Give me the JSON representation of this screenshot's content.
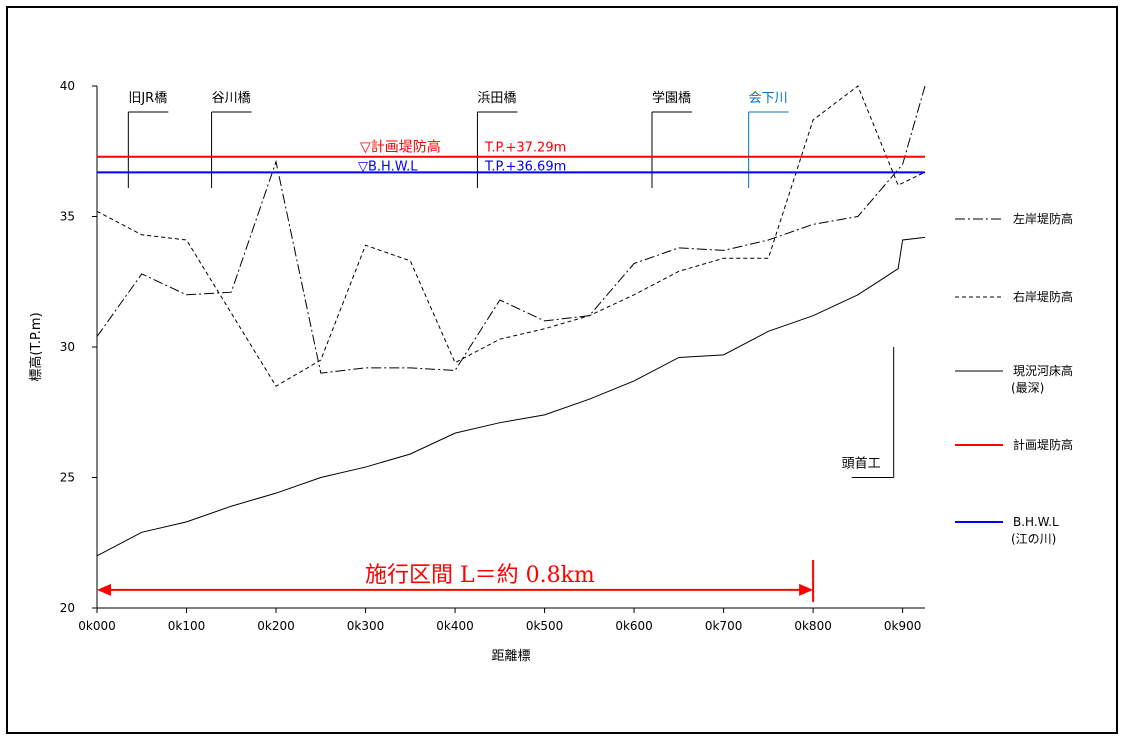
{
  "chart_data": {
    "type": "line",
    "xlabel": "距離標",
    "ylabel": "標高(T.P.m)",
    "ylim": [
      20,
      40
    ],
    "xlim": [
      0,
      925
    ],
    "x_ticks": [
      0,
      100,
      200,
      300,
      400,
      500,
      600,
      700,
      800,
      900
    ],
    "x_tick_labels": [
      "0k000",
      "0k100",
      "0k200",
      "0k300",
      "0k400",
      "0k500",
      "0k600",
      "0k700",
      "0k800",
      "0k900"
    ],
    "y_ticks": [
      20,
      25,
      30,
      35,
      40
    ],
    "y_tick_labels": [
      "20",
      "25",
      "30",
      "35",
      "40"
    ],
    "grid": false,
    "legend_position": "right",
    "series": [
      {
        "name": "左岸堤防高",
        "style": "dashdot",
        "color": "#000000",
        "x": [
          0,
          50,
          100,
          150,
          200,
          250,
          300,
          350,
          400,
          450,
          500,
          550,
          600,
          650,
          700,
          750,
          800,
          850,
          900,
          925
        ],
        "y": [
          30.4,
          32.8,
          32.0,
          32.1,
          37.1,
          29.0,
          29.2,
          29.2,
          29.1,
          31.8,
          31.0,
          31.2,
          33.2,
          33.8,
          33.7,
          34.1,
          34.7,
          35.0,
          37.0,
          40.0
        ]
      },
      {
        "name": "右岸堤防高",
        "style": "dashed",
        "color": "#000000",
        "x": [
          0,
          50,
          100,
          150,
          200,
          250,
          300,
          350,
          400,
          450,
          500,
          550,
          600,
          650,
          700,
          750,
          800,
          850,
          895,
          925
        ],
        "y": [
          35.2,
          34.3,
          34.1,
          31.3,
          28.5,
          29.5,
          33.9,
          33.3,
          29.4,
          30.3,
          30.7,
          31.2,
          32.0,
          32.9,
          33.4,
          33.4,
          38.7,
          40.0,
          36.2,
          36.7
        ]
      },
      {
        "name": "現況河床高\n(最深)",
        "style": "solid",
        "color": "#000000",
        "x": [
          0,
          50,
          100,
          150,
          200,
          250,
          300,
          350,
          400,
          450,
          500,
          550,
          600,
          650,
          700,
          750,
          800,
          850,
          895,
          900,
          925
        ],
        "y": [
          22.0,
          22.9,
          23.3,
          23.9,
          24.4,
          25.0,
          25.4,
          25.9,
          26.7,
          27.1,
          27.4,
          28.0,
          28.7,
          29.6,
          29.7,
          30.6,
          31.2,
          32.0,
          33.0,
          34.1,
          34.2
        ]
      },
      {
        "name": "計画堤防高",
        "style": "solid",
        "color": "#ff0000",
        "x": [
          0,
          925
        ],
        "y": [
          37.29,
          37.29
        ]
      },
      {
        "name": "B.H.W.L\n(江の川)",
        "style": "solid",
        "color": "#0000ff",
        "x": [
          0,
          925
        ],
        "y": [
          36.69,
          36.69
        ]
      }
    ],
    "bridges": [
      {
        "name": "旧JR橋",
        "x": 35,
        "color": "#000000"
      },
      {
        "name": "谷川橋",
        "x": 128,
        "color": "#000000"
      },
      {
        "name": "浜田橋",
        "x": 425,
        "color": "#000000"
      },
      {
        "name": "学園橋",
        "x": 620,
        "color": "#000000"
      },
      {
        "name": "会下川",
        "x": 728,
        "color": "#0070c0"
      }
    ],
    "weir": {
      "name": "頭首工",
      "x": 890,
      "y_top": 30.0,
      "y_bottom": 25.0
    },
    "level_annotations": [
      {
        "text": "▽計画堤防高",
        "value_text": "T.P.+37.29m",
        "color": "#ff0000"
      },
      {
        "text": "▽B.H.W.L",
        "value_text": "T.P.+36.69m",
        "color": "#0000ff"
      }
    ],
    "section": {
      "text": "施行区間 L＝約 0.8km",
      "x_start": 0,
      "x_end": 800,
      "y": 21.0,
      "color": "#ff0000"
    }
  }
}
